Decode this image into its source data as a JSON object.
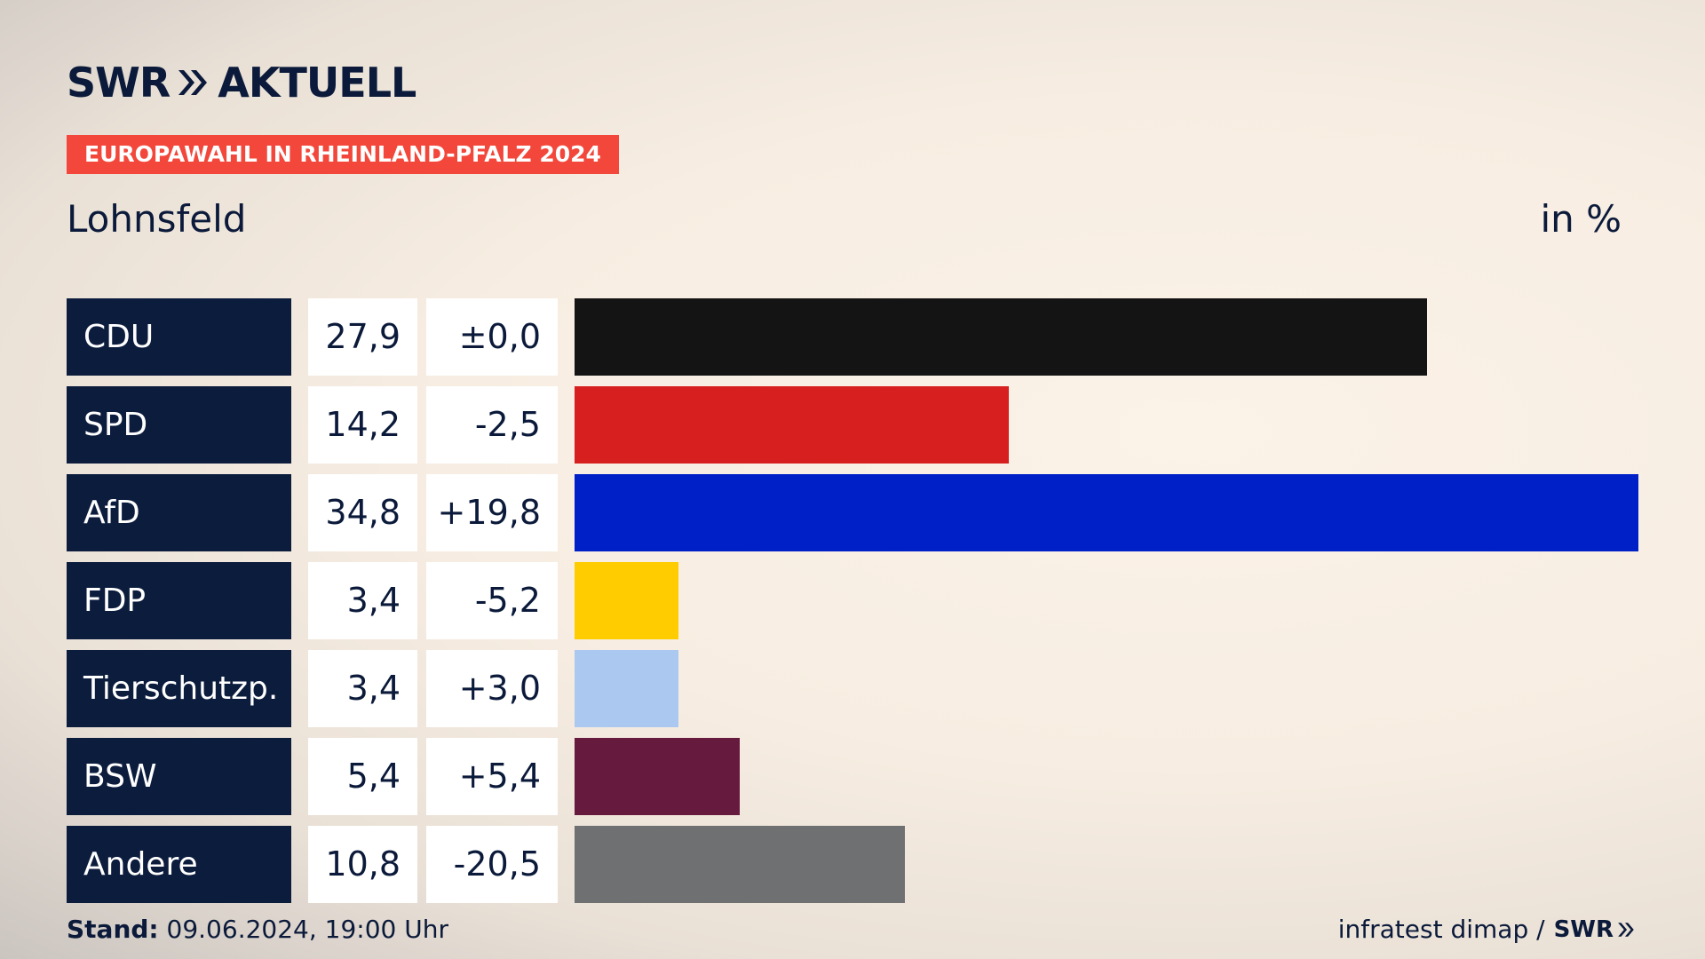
{
  "brand": {
    "logo_left": "SWR",
    "logo_right": "AKTUELL",
    "chevron_icon": "double-chevron-right-icon"
  },
  "header": {
    "badge": "EUROPAWAHL IN RHEINLAND-PFALZ 2024",
    "region": "Lohnsfeld",
    "unit": "in %"
  },
  "footer": {
    "stand_label": "Stand:",
    "stand_value": "09.06.2024, 19:00 Uhr",
    "source": "infratest dimap /",
    "source_brand": "SWR"
  },
  "colors": {
    "accent": "#f2473a",
    "navy": "#0c1c3d"
  },
  "chart_data": {
    "type": "bar",
    "orientation": "horizontal",
    "categories": [
      "CDU",
      "SPD",
      "AfD",
      "FDP",
      "Tierschutzp.",
      "BSW",
      "Andere"
    ],
    "values": [
      27.9,
      14.2,
      34.8,
      3.4,
      3.4,
      5.4,
      10.8
    ],
    "value_labels": [
      "27,9",
      "14,2",
      "34,8",
      "3,4",
      "3,4",
      "5,4",
      "10,8"
    ],
    "diff_labels": [
      "±0,0",
      "-2,5",
      "+19,8",
      "-5,2",
      "+3,0",
      "+5,4",
      "-20,5"
    ],
    "diffs": [
      0.0,
      -2.5,
      19.8,
      -5.2,
      3.0,
      5.4,
      -20.5
    ],
    "bar_colors": [
      "#141414",
      "#d71f1f",
      "#0020c7",
      "#ffcc00",
      "#abc9f0",
      "#661a3e",
      "#6f7072"
    ],
    "xlim": [
      0,
      34.8
    ]
  }
}
